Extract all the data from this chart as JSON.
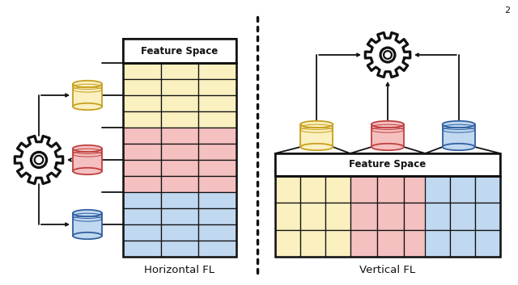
{
  "title_horizontal": "Horizontal FL",
  "title_vertical": "Vertical FL",
  "colors": {
    "yellow": "#FAF0C0",
    "yellow_dark": "#C8A020",
    "pink": "#F5C0C0",
    "pink_dark": "#C04040",
    "blue": "#C0D8F0",
    "blue_dark": "#3060A0",
    "white": "#FFFFFF",
    "black": "#111111"
  },
  "page_number": "2"
}
